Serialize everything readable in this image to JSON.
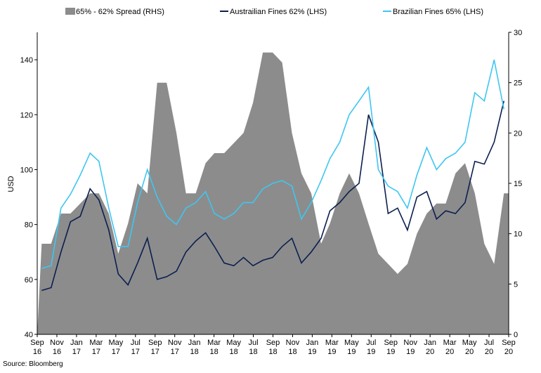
{
  "chart_data": {
    "type": "area+line",
    "source": "Source: Bloomberg",
    "ylabel_left": "USD",
    "ylim_left": [
      40,
      150
    ],
    "yticks_left": [
      40,
      60,
      80,
      100,
      120,
      140
    ],
    "ylim_right": [
      0,
      30
    ],
    "yticks_right": [
      0,
      5,
      10,
      15,
      20,
      25,
      30
    ],
    "grid": false,
    "legend_position": "top",
    "x_tick_labels": [
      {
        "m": "Sep",
        "y": "16"
      },
      {
        "m": "Nov",
        "y": "16"
      },
      {
        "m": "Jan",
        "y": "17"
      },
      {
        "m": "Mar",
        "y": "17"
      },
      {
        "m": "May",
        "y": "17"
      },
      {
        "m": "Jul",
        "y": "17"
      },
      {
        "m": "Sep",
        "y": "17"
      },
      {
        "m": "Nov",
        "y": "17"
      },
      {
        "m": "Jan",
        "y": "18"
      },
      {
        "m": "Mar",
        "y": "18"
      },
      {
        "m": "May",
        "y": "18"
      },
      {
        "m": "Jul",
        "y": "18"
      },
      {
        "m": "Sep",
        "y": "18"
      },
      {
        "m": "Nov",
        "y": "18"
      },
      {
        "m": "Jan",
        "y": "19"
      },
      {
        "m": "Mar",
        "y": "19"
      },
      {
        "m": "May",
        "y": "19"
      },
      {
        "m": "Jul",
        "y": "19"
      },
      {
        "m": "Sep",
        "y": "19"
      },
      {
        "m": "Nov",
        "y": "19"
      },
      {
        "m": "Jan",
        "y": "20"
      },
      {
        "m": "Mar",
        "y": "20"
      },
      {
        "m": "May",
        "y": "20"
      },
      {
        "m": "Jul",
        "y": "20"
      },
      {
        "m": "Sep",
        "y": "20"
      }
    ],
    "series": [
      {
        "name": "65% - 62% Spread (RHS)",
        "axis": "right",
        "style": "area",
        "color": "#8c8c8c",
        "x": [
          "2016-09",
          "2016-10",
          "2016-11",
          "2016-12",
          "2017-01",
          "2017-02",
          "2017-03",
          "2017-04",
          "2017-05",
          "2017-06",
          "2017-07",
          "2017-08",
          "2017-09",
          "2017-10",
          "2017-11",
          "2017-12",
          "2018-01",
          "2018-02",
          "2018-03",
          "2018-04",
          "2018-05",
          "2018-06",
          "2018-07",
          "2018-08",
          "2018-09",
          "2018-10",
          "2018-11",
          "2018-12",
          "2019-01",
          "2019-02",
          "2019-03",
          "2019-04",
          "2019-05",
          "2019-06",
          "2019-07",
          "2019-08",
          "2019-09",
          "2019-10",
          "2019-11",
          "2019-12",
          "2020-01",
          "2020-02",
          "2020-03",
          "2020-04",
          "2020-05",
          "2020-06",
          "2020-07",
          "2020-08",
          "2020-09"
        ],
        "values": [
          9,
          9,
          12,
          12,
          13,
          14,
          14,
          12,
          8,
          11,
          15,
          14,
          25,
          25,
          20,
          14,
          14,
          17,
          18,
          18,
          19,
          20,
          23,
          28,
          28,
          27,
          20,
          16,
          14,
          9,
          11,
          14,
          16,
          14,
          11,
          8,
          7,
          6,
          7,
          10,
          12,
          13,
          13,
          16,
          17,
          14,
          9,
          7,
          14
        ]
      },
      {
        "name": "Austrailian Fines 62% (LHS)",
        "axis": "left",
        "style": "line",
        "color": "#0b1f4f",
        "x": [
          "2016-09",
          "2016-10",
          "2016-11",
          "2016-12",
          "2017-01",
          "2017-02",
          "2017-03",
          "2017-04",
          "2017-05",
          "2017-06",
          "2017-07",
          "2017-08",
          "2017-09",
          "2017-10",
          "2017-11",
          "2017-12",
          "2018-01",
          "2018-02",
          "2018-03",
          "2018-04",
          "2018-05",
          "2018-06",
          "2018-07",
          "2018-08",
          "2018-09",
          "2018-10",
          "2018-11",
          "2018-12",
          "2019-01",
          "2019-02",
          "2019-03",
          "2019-04",
          "2019-05",
          "2019-06",
          "2019-07",
          "2019-08",
          "2019-09",
          "2019-10",
          "2019-11",
          "2019-12",
          "2020-01",
          "2020-02",
          "2020-03",
          "2020-04",
          "2020-05",
          "2020-06",
          "2020-07",
          "2020-08",
          "2020-09"
        ],
        "values": [
          56,
          57,
          70,
          81,
          83,
          93,
          89,
          78,
          62,
          58,
          66,
          75,
          60,
          61,
          63,
          70,
          74,
          77,
          72,
          66,
          65,
          68,
          65,
          67,
          68,
          72,
          75,
          66,
          70,
          75,
          85,
          88,
          92,
          95,
          120,
          110,
          84,
          86,
          78,
          90,
          92,
          82,
          85,
          84,
          88,
          103,
          102,
          110,
          125
        ]
      },
      {
        "name": "Brazilian Fines 65% (LHS)",
        "axis": "left",
        "style": "line",
        "color": "#3fc6f1",
        "x": [
          "2016-09",
          "2016-10",
          "2016-11",
          "2016-12",
          "2017-01",
          "2017-02",
          "2017-03",
          "2017-04",
          "2017-05",
          "2017-06",
          "2017-07",
          "2017-08",
          "2017-09",
          "2017-10",
          "2017-11",
          "2017-12",
          "2018-01",
          "2018-02",
          "2018-03",
          "2018-04",
          "2018-05",
          "2018-06",
          "2018-07",
          "2018-08",
          "2018-09",
          "2018-10",
          "2018-11",
          "2018-12",
          "2019-01",
          "2019-02",
          "2019-03",
          "2019-04",
          "2019-05",
          "2019-06",
          "2019-07",
          "2019-08",
          "2019-09",
          "2019-10",
          "2019-11",
          "2019-12",
          "2020-01",
          "2020-02",
          "2020-03",
          "2020-04",
          "2020-05",
          "2020-06",
          "2020-07",
          "2020-08",
          "2020-09"
        ],
        "values": [
          64,
          65,
          86,
          91,
          98,
          106,
          103,
          86,
          72,
          72,
          88,
          100,
          90,
          83,
          80,
          86,
          88,
          92,
          84,
          82,
          84,
          88,
          88,
          93,
          95,
          96,
          94,
          82,
          88,
          96,
          104,
          110,
          120,
          125,
          130,
          100,
          94,
          92,
          86,
          98,
          108,
          100,
          104,
          106,
          110,
          128,
          125,
          140,
          122
        ]
      }
    ]
  }
}
